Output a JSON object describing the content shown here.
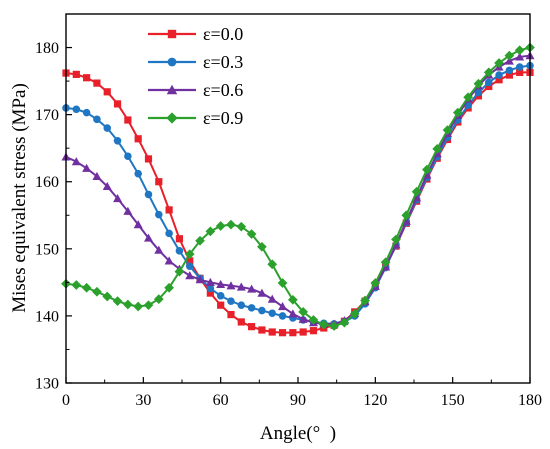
{
  "chart_data": {
    "type": "line",
    "xlabel": "Angle(°  )",
    "ylabel": "Mises equivalent stress (MPa)",
    "xlim": [
      0,
      180
    ],
    "ylim": [
      130,
      185
    ],
    "xticks": [
      "0",
      "30",
      "60",
      "90",
      "120",
      "150",
      "180"
    ],
    "yticks": [
      "130",
      "140",
      "150",
      "160",
      "170",
      "180"
    ],
    "grid": false,
    "legend_position": "top-left",
    "x": [
      0,
      4,
      8,
      12,
      16,
      20,
      24,
      28,
      32,
      36,
      40,
      44,
      48,
      52,
      56,
      60,
      64,
      68,
      72,
      76,
      80,
      84,
      88,
      92,
      96,
      100,
      104,
      108,
      112,
      116,
      120,
      124,
      128,
      132,
      136,
      140,
      144,
      148,
      152,
      156,
      160,
      164,
      168,
      172,
      176,
      180
    ],
    "series": [
      {
        "name": "ε=0.0",
        "color": "#e8202a",
        "marker": "square",
        "values": [
          176.2,
          176.0,
          175.5,
          174.7,
          173.4,
          171.6,
          169.2,
          166.4,
          163.4,
          160.0,
          155.8,
          151.5,
          148.2,
          145.6,
          143.4,
          141.6,
          140.2,
          139.1,
          138.4,
          137.9,
          137.6,
          137.5,
          137.5,
          137.6,
          137.8,
          138.2,
          138.6,
          139.2,
          140.6,
          142.2,
          144.6,
          147.4,
          150.4,
          153.8,
          157.1,
          160.4,
          163.5,
          166.3,
          168.9,
          171.0,
          172.8,
          174.2,
          175.2,
          175.9,
          176.3,
          176.3
        ]
      },
      {
        "name": "ε=0.3",
        "color": "#1f77c4",
        "marker": "circle",
        "values": [
          171.0,
          170.8,
          170.3,
          169.3,
          168.0,
          166.1,
          163.8,
          161.2,
          158.1,
          155.1,
          152.3,
          149.7,
          147.4,
          145.6,
          144.1,
          143.0,
          142.2,
          141.6,
          141.2,
          140.8,
          140.4,
          140.0,
          139.7,
          139.4,
          139.1,
          138.9,
          138.8,
          139.1,
          140.0,
          141.8,
          144.2,
          147.2,
          150.5,
          153.9,
          157.3,
          160.6,
          163.7,
          166.6,
          169.2,
          171.4,
          173.3,
          174.8,
          175.9,
          176.6,
          177.1,
          177.3
        ]
      },
      {
        "name": "ε=0.6",
        "color": "#7030a0",
        "marker": "triangle",
        "values": [
          163.7,
          163.0,
          162.0,
          160.8,
          159.3,
          157.5,
          155.6,
          153.6,
          151.6,
          149.8,
          148.2,
          147.0,
          146.0,
          145.4,
          145.0,
          144.7,
          144.5,
          144.3,
          144.0,
          143.4,
          142.5,
          141.4,
          140.3,
          139.5,
          139.0,
          138.8,
          138.8,
          139.3,
          140.4,
          142.1,
          144.4,
          147.3,
          150.6,
          154.1,
          157.6,
          161.0,
          164.2,
          167.2,
          169.9,
          172.3,
          174.3,
          175.9,
          177.1,
          178.0,
          178.6,
          178.8
        ]
      },
      {
        "name": "ε=0.9",
        "color": "#2ca02c",
        "marker": "diamond",
        "values": [
          144.8,
          144.6,
          144.2,
          143.6,
          142.9,
          142.2,
          141.7,
          141.4,
          141.6,
          142.5,
          144.2,
          146.6,
          149.2,
          151.2,
          152.6,
          153.4,
          153.6,
          153.3,
          152.2,
          150.3,
          147.7,
          144.9,
          142.4,
          140.6,
          139.4,
          138.7,
          138.5,
          139.0,
          140.3,
          142.3,
          144.9,
          148.0,
          151.4,
          155.0,
          158.5,
          161.8,
          164.9,
          167.7,
          170.3,
          172.6,
          174.6,
          176.3,
          177.7,
          178.8,
          179.6,
          180.0
        ]
      }
    ]
  }
}
